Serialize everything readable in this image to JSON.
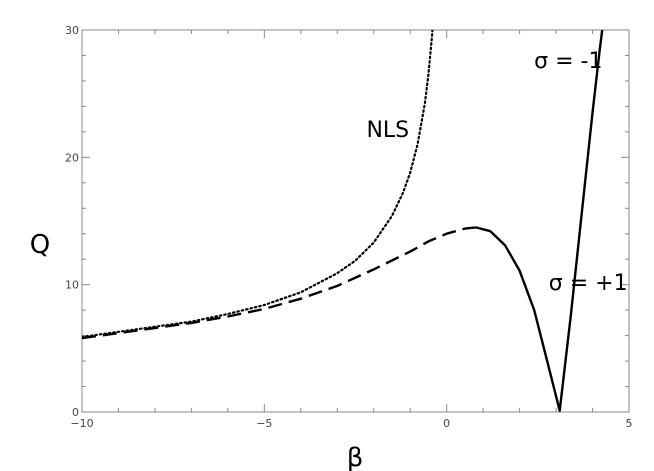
{
  "chart_data": {
    "type": "line",
    "xlabel": "β",
    "ylabel": "Q",
    "xlim": [
      -10,
      5
    ],
    "ylim": [
      0,
      30
    ],
    "grid": false,
    "x_ticks": [
      -10,
      -5,
      0,
      5
    ],
    "x_tick_labels": [
      "−10",
      "−5",
      "0",
      "5"
    ],
    "y_ticks": [
      0,
      10,
      20,
      30
    ],
    "y_tick_labels": [
      "0",
      "10",
      "20",
      "30"
    ],
    "series": [
      {
        "name": "NLS",
        "style": "dotted",
        "x": [
          -10,
          -9,
          -8,
          -7,
          -6,
          -5,
          -4,
          -3,
          -2.5,
          -2,
          -1.5,
          -1.2,
          -1,
          -0.8,
          -0.6,
          -0.5,
          -0.4,
          -0.3,
          -0.2
        ],
        "y": [
          5.9,
          6.3,
          6.7,
          7.1,
          7.7,
          8.4,
          9.4,
          10.9,
          11.9,
          13.3,
          15.4,
          17.2,
          18.8,
          21.0,
          24.2,
          26.5,
          29.6,
          34.2,
          42.0
        ]
      },
      {
        "name": "",
        "style": "dashed",
        "x": [
          -10,
          -9,
          -8,
          -7,
          -6,
          -5,
          -4,
          -3,
          -2,
          -1,
          -0.5,
          0,
          0.5,
          0.8
        ],
        "y": [
          5.8,
          6.2,
          6.6,
          7.0,
          7.5,
          8.1,
          8.9,
          9.9,
          11.2,
          12.6,
          13.4,
          14.0,
          14.4,
          14.5
        ]
      },
      {
        "name": "",
        "style": "solid",
        "x": [
          0.8,
          1.2,
          1.6,
          2.0,
          2.4,
          2.8,
          3.1,
          3.4,
          3.7,
          4.0,
          4.2,
          4.4
        ],
        "y": [
          14.5,
          14.2,
          13.1,
          11.1,
          8.0,
          3.5,
          0.1,
          7.5,
          15.5,
          23.5,
          28.5,
          33.0
        ]
      }
    ],
    "annotations": [
      {
        "text": "NLS",
        "x": -2.2,
        "y": 21.6
      },
      {
        "text": "σ = +1",
        "x": 2.8,
        "y": 9.6
      },
      {
        "text": "σ = -1",
        "x": 2.4,
        "y": 27.0
      }
    ]
  }
}
